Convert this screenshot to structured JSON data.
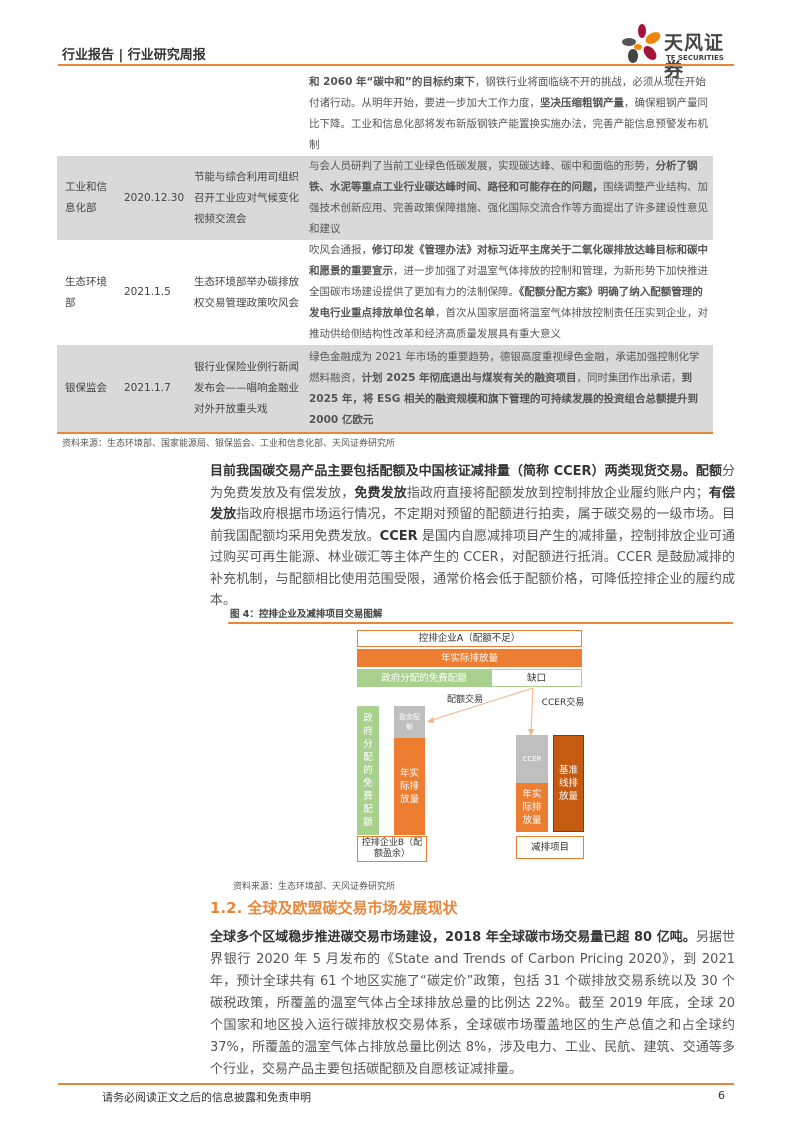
{
  "header": {
    "title": "行业报告 | 行业研究周报",
    "logo_cn": "天风证券",
    "logo_en": "TF SECURITIES"
  },
  "table": {
    "rows": [
      {
        "org": "",
        "date": "",
        "event": "",
        "content": [
          {
            "t": "和 2060 年“碳中和”的目标约束下",
            "b": true
          },
          {
            "t": "，钢铁行业将面临绕不开的挑战，必须从现在开始付诸行动。从明年开始，要进一步加大工作力度，"
          },
          {
            "t": "坚决压缩粗钢产量",
            "b": true
          },
          {
            "t": "，确保粗钢产量同比下降。工业和信息化部将发布新版钢铁产能置换实施办法，完善产能信息预警发布机制"
          }
        ]
      },
      {
        "org": "工业和信息化部",
        "date": "2020.12.30",
        "event": "节能与综合利用司组织召开工业应对气候变化视频交流会",
        "content": [
          {
            "t": "与会人员研判了当前工业绿色低碳发展，实现碳达峰、碳中和面临的形势，"
          },
          {
            "t": "分析了钢铁、水泥等重点工业行业碳达峰时间、路径和可能存在的问题，",
            "b": true
          },
          {
            "t": "围绕调整产业结构、加强技术创新应用、完善政策保障措施、强化国际交流合作等方面提出了许多建设性意见和建议"
          }
        ]
      },
      {
        "org": "生态环境部",
        "date": "2021.1.5",
        "event": "生态环境部举办碳排放权交易管理政策吹风会",
        "content": [
          {
            "t": "吹风会通报，"
          },
          {
            "t": "修订印发《管理办法》对标习近平主席关于二氧化碳排放达峰目标和碳中和愿景的重要宣示",
            "b": true
          },
          {
            "t": "，进一步加强了对温室气体排放的控制和管理，为新形势下加快推进全国碳市场建设提供了更加有力的法制保障。"
          },
          {
            "t": "《配额分配方案》明确了纳入配额管理的发电行业重点排放单位名单",
            "b": true
          },
          {
            "t": "，首次从国家层面将温室气体排放控制责任压实到企业，对推动供给侧结构性改革和经济高质量发展具有重大意义"
          }
        ]
      },
      {
        "org": "银保监会",
        "date": "2021.1.7",
        "event": "银行业保险业例行新闻发布会——唱响金融业对外开放重头戏",
        "content": [
          {
            "t": "绿色金融成为 2021 年市场的重要趋势，德银高度重视绿色金融，承诺加强控制化学燃料融资，"
          },
          {
            "t": "计划 2025 年彻底退出与煤炭有关的融资项目",
            "b": true
          },
          {
            "t": "，同时集团作出承诺，"
          },
          {
            "t": "到 2025 年，将 ESG 相关的融资规模和旗下管理的可持续发展的投资组合总额提升到 2000 亿欧元",
            "b": true
          }
        ]
      }
    ],
    "source": "资料来源：生态环境部、国家能源局、银保监会、工业和信息化部、天风证券研究所"
  },
  "para1": [
    {
      "t": "目前我国碳交易产品主要包括配额及中国核证减排量（简称 CCER）两类现货交易。配额",
      "b": true
    },
    {
      "t": "分为免费发放及有偿发放，"
    },
    {
      "t": "免费发放",
      "b": true
    },
    {
      "t": "指政府直接将配额发放到控制排放企业履约账户内；"
    },
    {
      "t": "有偿发放",
      "b": true
    },
    {
      "t": "指政府根据市场运行情况，不定期对预留的配额进行拍卖，属于碳交易的一级市场。目前我国配额均采用免费发放。"
    },
    {
      "t": "CCER",
      "b": true
    },
    {
      "t": " 是国内自愿减排项目产生的减排量，控制排放企业可通过购买可再生能源、林业碳汇等主体产生的 CCER，对配额进行抵消。CCER 是鼓励减排的补充机制，与配额相比使用范围受限，通常价格会低于配额价格，可降低控排企业的履约成本。"
    }
  ],
  "figure": {
    "caption": "图 4：控排企业及减排项目交易图解",
    "company_a": "控排企业A（配额不足）",
    "annual_emission": "年实际排放量",
    "free_quota": "政府分配的免费配额",
    "gap": "缺口",
    "quota_trade": "配额交易",
    "ccer_trade": "CCER交易",
    "gov_free_vertical": "政府分配的免费配额",
    "surplus": "盈余配额",
    "annual_emission_b": "年实际排放量",
    "company_b": "控排企业B（配额盈余）",
    "ccer": "CCER",
    "annual_emission_p": "年实际排放量",
    "baseline": "基准线排放量",
    "project": "减排项目",
    "colors": {
      "orange": "#ed7d31",
      "green": "#a9d18e",
      "gray": "#bfbfbf",
      "dark_orange": "#c55a11"
    },
    "source": "资料来源：生态环境部、天风证券研究所"
  },
  "section": {
    "heading": "1.2. 全球及欧盟碳交易市场发展现状"
  },
  "para2": [
    {
      "t": "全球多个区域稳步推进碳交易市场建设，2018 年全球碳市场交易量已超 80 亿吨。",
      "b": true
    },
    {
      "t": "另据世界银行 2020 年 5 月发布的《State and Trends of Carbon Pricing 2020》，到 2021 年，预计全球共有 61 个地区实施了“碳定价”政策，包括 31 个碳排放交易系统以及 30 个碳税政策，所覆盖的温室气体占全球排放总量的比例达 22%。截至 2019 年底，全球 20 个国家和地区投入运行碳排放权交易体系，全球碳市场覆盖地区的生产总值之和占全球约 37%，所覆盖的温室气体占排放总量比例达 8%，涉及电力、工业、民航、建筑、交通等多个行业，交易产品主要包括碳配额及自愿核证减排量。"
    }
  ],
  "footer": {
    "disclaimer": "请务必阅读正文之后的信息披露和免责申明",
    "page": "6"
  }
}
